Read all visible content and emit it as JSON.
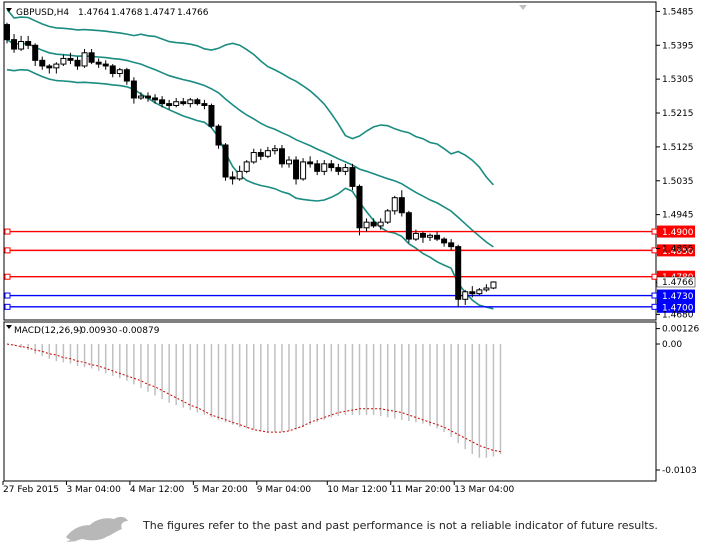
{
  "chart_data": {
    "type": "candlestick",
    "instrument": "GBPUSD,H4",
    "header_prices": [
      "1.4764",
      "1.4768",
      "1.4747",
      "1.4766"
    ],
    "ylim": [
      1.4665,
      1.551
    ],
    "y_ticks": [
      "1.5485",
      "1.5395",
      "1.5305",
      "1.5215",
      "1.5125",
      "1.5035",
      "1.4945",
      "1.4855",
      "1.4765",
      "1.4680"
    ],
    "x_ticks": [
      "27 Feb 2015",
      "3 Mar 04:00",
      "4 Mar 12:00",
      "5 Mar 20:00",
      "9 Mar 04:00",
      "10 Mar 12:00",
      "11 Mar 20:00",
      "13 Mar 04:00"
    ],
    "horizontal_levels": [
      {
        "label": "1.4900",
        "value": 1.49,
        "color": "#ff0000"
      },
      {
        "label": "1.4850",
        "value": 1.485,
        "color": "#ff0000"
      },
      {
        "label": "1.4780",
        "value": 1.478,
        "color": "#ff0000"
      },
      {
        "label": "1.4730",
        "value": 1.473,
        "color": "#0000ff"
      },
      {
        "label": "1.4700",
        "value": 1.47,
        "color": "#0000ff"
      }
    ],
    "candles": [
      [
        1.545,
        1.5455,
        1.54,
        1.541
      ],
      [
        1.541,
        1.5425,
        1.5375,
        1.5385
      ],
      [
        1.5385,
        1.542,
        1.538,
        1.5405
      ],
      [
        1.5405,
        1.542,
        1.5385,
        1.5395
      ],
      [
        1.5395,
        1.54,
        1.534,
        1.5355
      ],
      [
        1.5355,
        1.5365,
        1.533,
        1.534
      ],
      [
        1.534,
        1.5345,
        1.532,
        1.5335
      ],
      [
        1.5335,
        1.535,
        1.532,
        1.5345
      ],
      [
        1.5345,
        1.537,
        1.534,
        1.536
      ],
      [
        1.536,
        1.5375,
        1.5345,
        1.5355
      ],
      [
        1.5355,
        1.5365,
        1.533,
        1.534
      ],
      [
        1.534,
        1.5385,
        1.5335,
        1.5375
      ],
      [
        1.5375,
        1.5385,
        1.5345,
        1.535
      ],
      [
        1.535,
        1.536,
        1.5335,
        1.5345
      ],
      [
        1.5345,
        1.5355,
        1.533,
        1.534
      ],
      [
        1.534,
        1.5345,
        1.531,
        1.532
      ],
      [
        1.532,
        1.5335,
        1.531,
        1.533
      ],
      [
        1.533,
        1.5335,
        1.529,
        1.53
      ],
      [
        1.53,
        1.531,
        1.524,
        1.5255
      ],
      [
        1.5255,
        1.527,
        1.525,
        1.526
      ],
      [
        1.526,
        1.527,
        1.5245,
        1.5255
      ],
      [
        1.5255,
        1.5265,
        1.524,
        1.525
      ],
      [
        1.525,
        1.526,
        1.523,
        1.524
      ],
      [
        1.524,
        1.525,
        1.5225,
        1.5235
      ],
      [
        1.5235,
        1.5255,
        1.523,
        1.5245
      ],
      [
        1.5245,
        1.5255,
        1.5235,
        1.524
      ],
      [
        1.524,
        1.5255,
        1.523,
        1.525
      ],
      [
        1.525,
        1.5255,
        1.5235,
        1.524
      ],
      [
        1.524,
        1.525,
        1.5225,
        1.5235
      ],
      [
        1.5235,
        1.524,
        1.5175,
        1.518
      ],
      [
        1.518,
        1.5185,
        1.512,
        1.513
      ],
      [
        1.513,
        1.5135,
        1.5035,
        1.5045
      ],
      [
        1.5045,
        1.506,
        1.5025,
        1.504
      ],
      [
        1.504,
        1.5075,
        1.5035,
        1.506
      ],
      [
        1.506,
        1.509,
        1.5055,
        1.5085
      ],
      [
        1.5085,
        1.512,
        1.508,
        1.511
      ],
      [
        1.511,
        1.512,
        1.509,
        1.51
      ],
      [
        1.51,
        1.5125,
        1.5095,
        1.5115
      ],
      [
        1.5115,
        1.513,
        1.5105,
        1.512
      ],
      [
        1.512,
        1.513,
        1.507,
        1.508
      ],
      [
        1.508,
        1.51,
        1.507,
        1.509
      ],
      [
        1.509,
        1.51,
        1.5025,
        1.504
      ],
      [
        1.504,
        1.5095,
        1.5035,
        1.5085
      ],
      [
        1.5085,
        1.51,
        1.507,
        1.508
      ],
      [
        1.508,
        1.509,
        1.505,
        1.506
      ],
      [
        1.506,
        1.509,
        1.505,
        1.508
      ],
      [
        1.508,
        1.509,
        1.506,
        1.507
      ],
      [
        1.507,
        1.508,
        1.505,
        1.506
      ],
      [
        1.506,
        1.508,
        1.505,
        1.507
      ],
      [
        1.507,
        1.508,
        1.501,
        1.502
      ],
      [
        1.502,
        1.5025,
        1.489,
        1.491
      ],
      [
        1.491,
        1.4935,
        1.49,
        1.4925
      ],
      [
        1.4925,
        1.4935,
        1.491,
        1.4915
      ],
      [
        1.4915,
        1.4935,
        1.4905,
        1.4925
      ],
      [
        1.4925,
        1.496,
        1.492,
        1.4955
      ],
      [
        1.4955,
        1.4995,
        1.4945,
        1.499
      ],
      [
        1.499,
        1.501,
        1.494,
        1.495
      ],
      [
        1.495,
        1.4955,
        1.487,
        1.488
      ],
      [
        1.488,
        1.4905,
        1.4875,
        1.4895
      ],
      [
        1.4895,
        1.49,
        1.487,
        1.4885
      ],
      [
        1.4885,
        1.4895,
        1.4875,
        1.489
      ],
      [
        1.489,
        1.49,
        1.4875,
        1.488
      ],
      [
        1.488,
        1.4885,
        1.486,
        1.487
      ],
      [
        1.487,
        1.488,
        1.485,
        1.486
      ],
      [
        1.486,
        1.4865,
        1.47,
        1.472
      ],
      [
        1.472,
        1.4745,
        1.4705,
        1.474
      ],
      [
        1.474,
        1.4755,
        1.4725,
        1.4735
      ],
      [
        1.4735,
        1.475,
        1.473,
        1.4745
      ],
      [
        1.4745,
        1.476,
        1.474,
        1.475
      ],
      [
        1.475,
        1.4768,
        1.4747,
        1.4766
      ]
    ],
    "macd": {
      "label": "MACD(12,26,9)",
      "values_text": [
        "-0.00930",
        "-0.00879"
      ],
      "ylim": [
        -0.0112,
        0.0018
      ],
      "y_ticks": [
        "0.00126",
        "0.00",
        "-0.0103"
      ],
      "histogram": [
        0.0,
        -0.0001,
        -0.0003,
        -0.0005,
        -0.0008,
        -0.001,
        -0.0012,
        -0.0014,
        -0.0015,
        -0.0016,
        -0.0018,
        -0.0019,
        -0.002,
        -0.0022,
        -0.0024,
        -0.0026,
        -0.0028,
        -0.003,
        -0.0033,
        -0.0036,
        -0.0039,
        -0.0042,
        -0.0045,
        -0.0048,
        -0.005,
        -0.0052,
        -0.0054,
        -0.0056,
        -0.0058,
        -0.006,
        -0.0062,
        -0.0064,
        -0.0066,
        -0.0068,
        -0.0069,
        -0.007,
        -0.0071,
        -0.0072,
        -0.0072,
        -0.0072,
        -0.0071,
        -0.007,
        -0.0068,
        -0.0066,
        -0.0064,
        -0.0062,
        -0.006,
        -0.0059,
        -0.0058,
        -0.0058,
        -0.0058,
        -0.0058,
        -0.0058,
        -0.0059,
        -0.006,
        -0.0061,
        -0.0062,
        -0.0063,
        -0.0064,
        -0.0065,
        -0.0067,
        -0.0069,
        -0.0072,
        -0.0076,
        -0.0081,
        -0.0086,
        -0.009,
        -0.0093,
        -0.0093,
        -0.0092,
        -0.009
      ],
      "signal": [
        0.0,
        -0.0001,
        -0.0002,
        -0.0003,
        -0.0005,
        -0.0006,
        -0.0008,
        -0.0009,
        -0.0011,
        -0.0012,
        -0.0014,
        -0.0015,
        -0.0017,
        -0.0018,
        -0.002,
        -0.0022,
        -0.0024,
        -0.0026,
        -0.0028,
        -0.003,
        -0.0033,
        -0.0035,
        -0.0038,
        -0.0041,
        -0.0044,
        -0.0047,
        -0.005,
        -0.0052,
        -0.0055,
        -0.0058,
        -0.006,
        -0.0062,
        -0.0064,
        -0.0066,
        -0.0068,
        -0.007,
        -0.0071,
        -0.0072,
        -0.0072,
        -0.0072,
        -0.0071,
        -0.0069,
        -0.0067,
        -0.0064,
        -0.0062,
        -0.006,
        -0.0058,
        -0.0056,
        -0.0055,
        -0.0054,
        -0.0053,
        -0.0053,
        -0.0053,
        -0.0053,
        -0.0054,
        -0.0055,
        -0.0056,
        -0.0058,
        -0.006,
        -0.0062,
        -0.0064,
        -0.0066,
        -0.0068,
        -0.0071,
        -0.0074,
        -0.0077,
        -0.008,
        -0.0083,
        -0.0085,
        -0.0087,
        -0.0088
      ]
    }
  },
  "footer": {
    "disclaimer": "The figures refer to the past and past performance is not a reliable indicator of future results."
  },
  "colors": {
    "bollinger": "#1a8c82",
    "macd_signal": "#cc0000",
    "macd_hist": "#c0c0c0",
    "support": "#0000ff",
    "resistance": "#ff0000"
  }
}
